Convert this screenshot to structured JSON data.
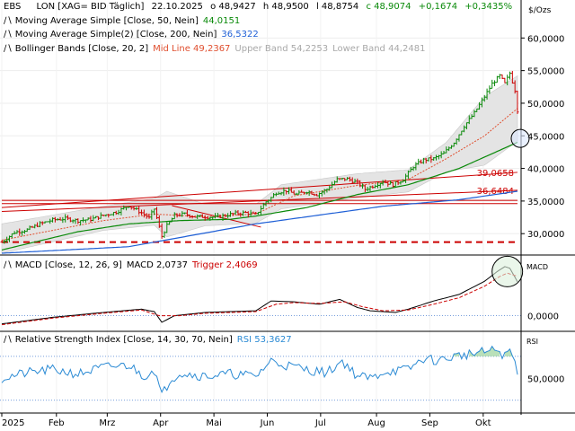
{
  "header": {
    "symbol": "EBS",
    "exchange": "LON [XAG= BID Täglich]",
    "date": "22.10.2025",
    "open": "o 48,9427",
    "high": "h 48,9500",
    "low": "l 48,8754",
    "close": "c 48,9074",
    "change": "+0,1674",
    "change_pct": "+0,3435%",
    "unit": "$/Ozs"
  },
  "legend": {
    "ma50": {
      "label": "Moving Average Simple [Close, 50, Nein]",
      "value": "44,0151",
      "color": "#0a8a0a"
    },
    "ma200": {
      "label": "Moving Average Simple(2) [Close, 200, Nein]",
      "value": "36,5322",
      "color": "#1e5fd6"
    },
    "bb_label": "Bollinger Bands [Close, 20, 2]",
    "bb_mid": "Mid Line 49,2367",
    "bb_upper": "Upper Band 54,2253",
    "bb_lower": "Lower Band 44,2481",
    "macd_label": "MACD [Close, 12, 26, 9]",
    "macd_value": "MACD 2,0737",
    "macd_trigger": "Trigger 2,4069",
    "rsi_label": "Relative Strength Index [Close, 14, 30, 70, Nein]",
    "rsi_value": "RSI 53,3627"
  },
  "colors": {
    "up": "#0a8a0a",
    "down": "#cc0000",
    "mid": "#e05030",
    "ma200": "#1e5fd6",
    "rsi": "#2a8ad4",
    "bb_fill": "#e4e4e4"
  },
  "panel_labels": {
    "macd": "MACD",
    "rsi": "RSI"
  },
  "chart_data": [
    {
      "type": "line",
      "title": "EBS LON [XAG= BID Täglich] 22.10.2025",
      "ylabel": "$/Ozs",
      "ylim": [
        27,
        65
      ],
      "y_ticks": [
        30,
        35,
        40,
        45,
        50,
        55,
        60
      ],
      "y_tick_labels": [
        "30,0000",
        "35,0000",
        "40,0000",
        "45,0000",
        "50,0000",
        "55,0000",
        "60,0000"
      ],
      "x_ticks": [
        "2025",
        "Feb",
        "Mrz",
        "Apr",
        "Mai",
        "Jun",
        "Jul",
        "Aug",
        "Sep",
        "Okt"
      ],
      "x_tick_pos": [
        0,
        21.5,
        41.5,
        62.5,
        83.5,
        104.5,
        125.5,
        147.5,
        168.5,
        189.5
      ],
      "x_count": 204,
      "price_anchors": [
        [
          0,
          28.7
        ],
        [
          5,
          30.2
        ],
        [
          10,
          30.6
        ],
        [
          15,
          31.5
        ],
        [
          20,
          32.1
        ],
        [
          25,
          32.3
        ],
        [
          30,
          32.0
        ],
        [
          35,
          32.2
        ],
        [
          40,
          32.8
        ],
        [
          45,
          33.3
        ],
        [
          50,
          34.3
        ],
        [
          55,
          33.2
        ],
        [
          58,
          32.4
        ],
        [
          60,
          33.8
        ],
        [
          63,
          29.6
        ],
        [
          65,
          31.2
        ],
        [
          68,
          32.8
        ],
        [
          72,
          33.0
        ],
        [
          76,
          32.6
        ],
        [
          80,
          32.6
        ],
        [
          84,
          32.5
        ],
        [
          88,
          32.8
        ],
        [
          92,
          33.1
        ],
        [
          96,
          33.2
        ],
        [
          100,
          32.9
        ],
        [
          104,
          34.9
        ],
        [
          106,
          35.5
        ],
        [
          108,
          36.3
        ],
        [
          112,
          36.6
        ],
        [
          116,
          36.0
        ],
        [
          120,
          36.5
        ],
        [
          124,
          36.0
        ],
        [
          128,
          36.8
        ],
        [
          132,
          38.3
        ],
        [
          136,
          38.4
        ],
        [
          140,
          37.8
        ],
        [
          143,
          36.8
        ],
        [
          146,
          37.3
        ],
        [
          150,
          38.0
        ],
        [
          154,
          37.5
        ],
        [
          158,
          38.3
        ],
        [
          162,
          40.3
        ],
        [
          166,
          41.3
        ],
        [
          170,
          41.5
        ],
        [
          174,
          42.3
        ],
        [
          178,
          44.0
        ],
        [
          182,
          46.5
        ],
        [
          186,
          48.5
        ],
        [
          190,
          51.0
        ],
        [
          193,
          53.0
        ],
        [
          196,
          54.2
        ],
        [
          198,
          53.0
        ],
        [
          200,
          54.6
        ],
        [
          202,
          52.0
        ],
        [
          203,
          48.9
        ]
      ],
      "series": [
        {
          "name": "Moving Average Simple [Close, 50, Nein]",
          "anchors": [
            [
              0,
              27.5
            ],
            [
              30,
              30.3
            ],
            [
              50,
              31.5
            ],
            [
              70,
              32.0
            ],
            [
              90,
              32.2
            ],
            [
              100,
              32.7
            ],
            [
              120,
              34.0
            ],
            [
              140,
              36.0
            ],
            [
              160,
              37.5
            ],
            [
              180,
              40.0
            ],
            [
              203,
              44.0
            ]
          ]
        },
        {
          "name": "Moving Average Simple(2) [Close, 200, Nein]",
          "anchors": [
            [
              0,
              27.0
            ],
            [
              50,
              28.0
            ],
            [
              100,
              31.5
            ],
            [
              150,
              34.2
            ],
            [
              180,
              35.2
            ],
            [
              203,
              36.5
            ]
          ]
        },
        {
          "name": "Mid Line",
          "anchors": [
            [
              0,
              29.0
            ],
            [
              40,
              32.0
            ],
            [
              60,
              33.0
            ],
            [
              80,
              32.6
            ],
            [
              100,
              33.0
            ],
            [
              115,
              35.8
            ],
            [
              140,
              37.4
            ],
            [
              160,
              38.3
            ],
            [
              175,
              41.5
            ],
            [
              190,
              45.0
            ],
            [
              203,
              49.2
            ]
          ]
        },
        {
          "name": "Upper Band",
          "anchors": [
            [
              0,
              31.5
            ],
            [
              40,
              34.2
            ],
            [
              60,
              35.4
            ],
            [
              65,
              36.5
            ],
            [
              80,
              34.5
            ],
            [
              100,
              34.5
            ],
            [
              110,
              37.5
            ],
            [
              140,
              39.2
            ],
            [
              160,
              39.8
            ],
            [
              175,
              44.0
            ],
            [
              190,
              51.0
            ],
            [
              203,
              54.2
            ]
          ]
        },
        {
          "name": "Lower Band",
          "anchors": [
            [
              0,
              27.0
            ],
            [
              40,
              30.5
            ],
            [
              60,
              31.3
            ],
            [
              65,
              29.5
            ],
            [
              80,
              31.2
            ],
            [
              100,
              31.6
            ],
            [
              110,
              33.8
            ],
            [
              140,
              35.5
            ],
            [
              160,
              36.4
            ],
            [
              175,
              39.5
            ],
            [
              190,
              40.5
            ],
            [
              203,
              44.2
            ]
          ]
        }
      ],
      "reference_lines": [
        {
          "label": "",
          "from": [
            0,
            35.1
          ],
          "to": [
            203,
            35.1
          ]
        },
        {
          "label": "",
          "from": [
            0,
            34.6
          ],
          "to": [
            203,
            34.6
          ]
        },
        {
          "label": "39,0658",
          "from": [
            0,
            34.0
          ],
          "to": [
            203,
            39.4
          ]
        },
        {
          "label": "36,6484",
          "from": [
            0,
            33.4
          ],
          "to": [
            203,
            36.65
          ]
        },
        {
          "label": "",
          "from": [
            67,
            34.3
          ],
          "to": [
            102,
            31.0
          ]
        },
        {
          "label": "",
          "from": [
            0,
            28.7
          ],
          "to": [
            203,
            28.7
          ],
          "style": "dashed"
        }
      ]
    },
    {
      "type": "line",
      "title": "MACD [Close, 12, 26, 9]",
      "ylim": [
        -0.9,
        3.6
      ],
      "y_ticks": [
        0
      ],
      "y_tick_labels": [
        "0,0000"
      ],
      "series": [
        {
          "name": "MACD",
          "anchors": [
            [
              0,
              -0.5
            ],
            [
              20,
              -0.1
            ],
            [
              40,
              0.2
            ],
            [
              55,
              0.4
            ],
            [
              60,
              0.25
            ],
            [
              63,
              -0.4
            ],
            [
              68,
              0.0
            ],
            [
              80,
              0.2
            ],
            [
              100,
              0.3
            ],
            [
              106,
              0.9
            ],
            [
              115,
              0.85
            ],
            [
              125,
              0.7
            ],
            [
              133,
              1.0
            ],
            [
              140,
              0.5
            ],
            [
              145,
              0.3
            ],
            [
              155,
              0.2
            ],
            [
              160,
              0.4
            ],
            [
              170,
              0.9
            ],
            [
              180,
              1.3
            ],
            [
              190,
              2.1
            ],
            [
              195,
              2.7
            ],
            [
              198,
              3.0
            ],
            [
              200,
              2.9
            ],
            [
              203,
              2.07
            ]
          ]
        },
        {
          "name": "Trigger",
          "anchors": [
            [
              0,
              -0.55
            ],
            [
              20,
              -0.15
            ],
            [
              40,
              0.15
            ],
            [
              55,
              0.35
            ],
            [
              62,
              0.0
            ],
            [
              70,
              0.0
            ],
            [
              80,
              0.15
            ],
            [
              100,
              0.25
            ],
            [
              108,
              0.7
            ],
            [
              115,
              0.8
            ],
            [
              125,
              0.75
            ],
            [
              135,
              0.85
            ],
            [
              142,
              0.55
            ],
            [
              150,
              0.3
            ],
            [
              160,
              0.35
            ],
            [
              170,
              0.7
            ],
            [
              180,
              1.1
            ],
            [
              190,
              1.8
            ],
            [
              196,
              2.4
            ],
            [
              199,
              2.6
            ],
            [
              203,
              2.41
            ]
          ]
        }
      ]
    },
    {
      "type": "line",
      "title": "Relative Strength Index [Close, 14, 30, 70, Nein]",
      "ylim": [
        20,
        92
      ],
      "y_ticks": [
        50
      ],
      "y_tick_labels": [
        "50,0000"
      ],
      "levels": [
        70,
        30
      ],
      "series": [
        {
          "name": "RSI",
          "anchors": [
            [
              0,
              50
            ],
            [
              10,
              55
            ],
            [
              20,
              58
            ],
            [
              30,
              54
            ],
            [
              40,
              60
            ],
            [
              50,
              62
            ],
            [
              56,
              52
            ],
            [
              60,
              58
            ],
            [
              63,
              34
            ],
            [
              66,
              48
            ],
            [
              70,
              55
            ],
            [
              80,
              52
            ],
            [
              90,
              54
            ],
            [
              100,
              52
            ],
            [
              106,
              66
            ],
            [
              112,
              62
            ],
            [
              120,
              58
            ],
            [
              128,
              55
            ],
            [
              134,
              66
            ],
            [
              140,
              52
            ],
            [
              146,
              50
            ],
            [
              150,
              56
            ],
            [
              160,
              58
            ],
            [
              166,
              68
            ],
            [
              172,
              66
            ],
            [
              178,
              70
            ],
            [
              184,
              72
            ],
            [
              190,
              74
            ],
            [
              195,
              76
            ],
            [
              198,
              70
            ],
            [
              200,
              76
            ],
            [
              202,
              64
            ],
            [
              203,
              53.4
            ]
          ]
        }
      ]
    }
  ]
}
